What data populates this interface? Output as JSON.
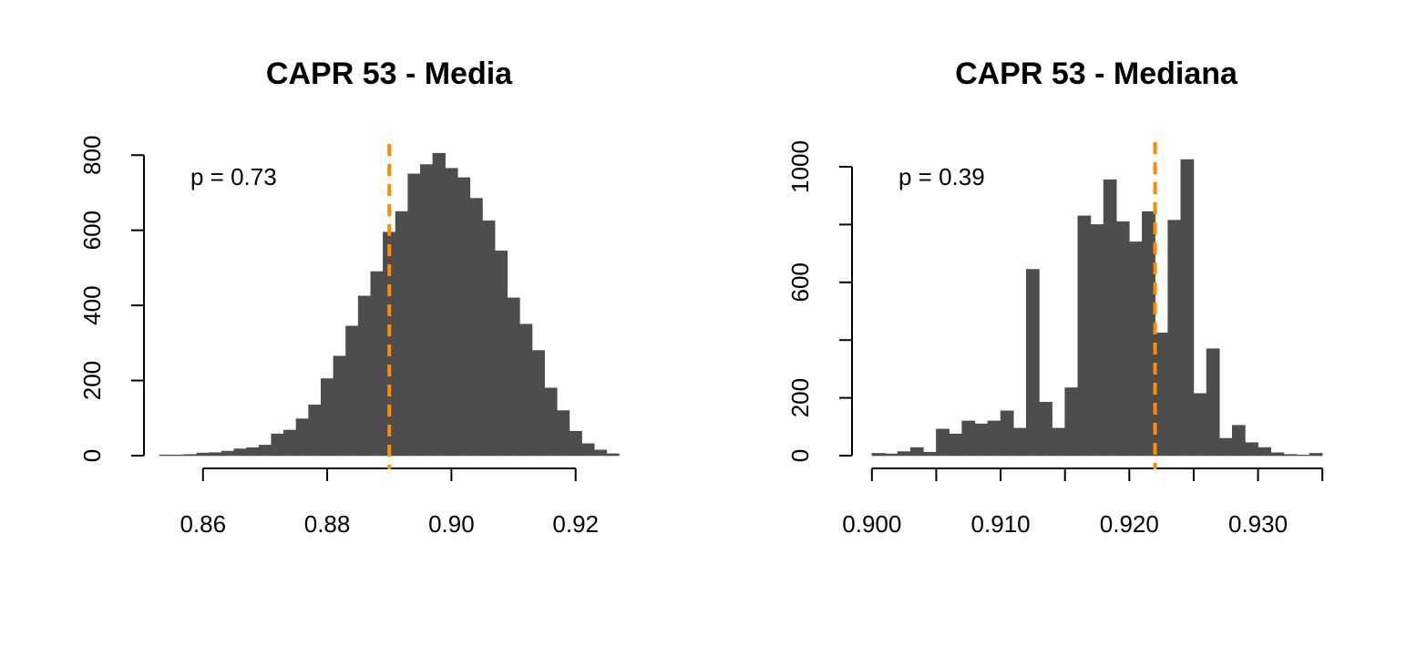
{
  "colors": {
    "bar": "#4d4d4d",
    "reference_line": "#ff8c00",
    "axis": "#000000",
    "background": "#ffffff"
  },
  "chart_data": [
    {
      "type": "bar",
      "title": "CAPR 53 - Media",
      "annotation": "p = 0.73",
      "xlabel": "",
      "ylabel": "",
      "xlim": [
        0.8505,
        0.9265
      ],
      "ylim": [
        0,
        820
      ],
      "xticks": [
        0.86,
        0.88,
        0.9,
        0.92
      ],
      "xtick_labels": [
        "0.86",
        "0.88",
        "0.90",
        "0.92"
      ],
      "xaxis_range": [
        0.86,
        0.92
      ],
      "yticks": [
        0,
        200,
        400,
        600,
        800
      ],
      "ytick_labels": [
        "0",
        "200",
        "400",
        "600",
        "800"
      ],
      "bin_width": 0.002,
      "bin_start": 0.853,
      "values": [
        2,
        2,
        3,
        7,
        8,
        12,
        18,
        21,
        28,
        58,
        68,
        98,
        135,
        205,
        265,
        345,
        425,
        490,
        595,
        650,
        750,
        775,
        805,
        765,
        740,
        685,
        625,
        545,
        420,
        350,
        280,
        180,
        120,
        65,
        32,
        15,
        5
      ],
      "reference_value": 0.89,
      "grid": false,
      "legend": "none"
    },
    {
      "type": "bar",
      "title": "CAPR 53 - Mediana",
      "annotation": "p = 0.39",
      "xlabel": "",
      "ylabel": "",
      "xlim": [
        0.8998,
        0.9352
      ],
      "ylim": [
        0,
        1060
      ],
      "xticks": [
        0.9,
        0.905,
        0.91,
        0.915,
        0.92,
        0.925,
        0.93,
        0.935
      ],
      "xtick_labels": [
        "0.900",
        "",
        "0.910",
        "",
        "0.920",
        "",
        "0.930",
        ""
      ],
      "xaxis_range": [
        0.9,
        0.935
      ],
      "yticks": [
        0,
        200,
        400,
        600,
        800,
        1000
      ],
      "ytick_labels": [
        "0",
        "200",
        "",
        "600",
        "",
        "1000"
      ],
      "bin_width": 0.001,
      "bin_start": 0.9,
      "values": [
        8,
        6,
        14,
        28,
        12,
        92,
        75,
        120,
        110,
        120,
        155,
        95,
        645,
        185,
        95,
        235,
        830,
        800,
        955,
        810,
        740,
        845,
        425,
        815,
        1025,
        215,
        370,
        60,
        105,
        45,
        28,
        10,
        4,
        2,
        8
      ],
      "reference_value": 0.922,
      "grid": false,
      "legend": "none"
    }
  ]
}
